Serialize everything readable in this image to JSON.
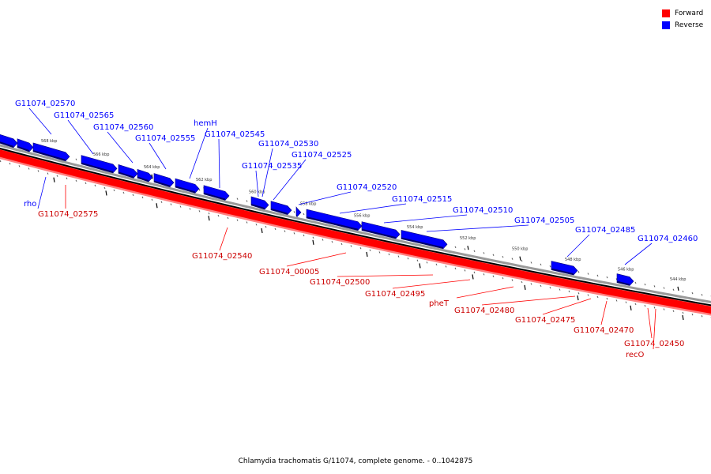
{
  "legend": {
    "forward_label": "Forward",
    "reverse_label": "Reverse",
    "forward_color": "#ff0000",
    "reverse_color": "#0000ff"
  },
  "caption": "Chlamydia trachomatis G/11074, complete genome. - 0..1042875",
  "ticks": [
    {
      "label": "568 kbp"
    },
    {
      "label": "566 kbp"
    },
    {
      "label": "564 kbp"
    },
    {
      "label": "562 kbp"
    },
    {
      "label": "560 kbp"
    },
    {
      "label": "558 kbp"
    },
    {
      "label": "556 kbp"
    },
    {
      "label": "554 kbp"
    },
    {
      "label": "552 kbp"
    },
    {
      "label": "550 kbp"
    },
    {
      "label": "548 kbp"
    },
    {
      "label": "546 kbp"
    },
    {
      "label": "544 kbp"
    }
  ],
  "reverse_genes": [
    {
      "label": "G11074_02570"
    },
    {
      "label": "G11074_02565"
    },
    {
      "label": "G11074_02560"
    },
    {
      "label": "G11074_02555"
    },
    {
      "label": "hemH"
    },
    {
      "label": "G11074_02545"
    },
    {
      "label": "G11074_02530"
    },
    {
      "label": "G11074_02525"
    },
    {
      "label": "G11074_02535"
    },
    {
      "label": "G11074_02520"
    },
    {
      "label": "G11074_02515"
    },
    {
      "label": "G11074_02510"
    },
    {
      "label": "G11074_02505"
    },
    {
      "label": "G11074_02485"
    },
    {
      "label": "G11074_02460"
    },
    {
      "label": "rho"
    }
  ],
  "forward_genes": [
    {
      "label": "G11074_02575"
    },
    {
      "label": "G11074_02540"
    },
    {
      "label": "G11074_00005"
    },
    {
      "label": "G11074_02500"
    },
    {
      "label": "G11074_02495"
    },
    {
      "label": "pheT"
    },
    {
      "label": "G11074_02480"
    },
    {
      "label": "G11074_02475"
    },
    {
      "label": "G11074_02470"
    },
    {
      "label": "G11074_02450"
    },
    {
      "label": "recO"
    }
  ]
}
